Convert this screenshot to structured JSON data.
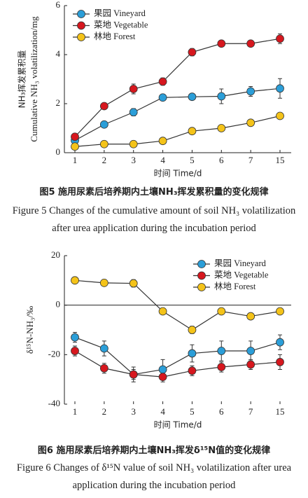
{
  "chart_data": [
    {
      "type": "line",
      "y_label_cn": "NH₃挥发累积量",
      "y_label": "Cumulative NH₃ volatilization/mg",
      "x_label": "时间 Time/d",
      "categories": [
        "1",
        "2",
        "3",
        "4",
        "5",
        "6",
        "7",
        "15"
      ],
      "ylim": [
        0,
        6
      ],
      "yticks": [
        0,
        2,
        4,
        6
      ],
      "legend": "upper left",
      "series": [
        {
          "name": "果园 Vineyard",
          "color": "#2b9ed8",
          "values": [
            0.5,
            1.15,
            1.65,
            2.25,
            2.28,
            2.3,
            2.5,
            2.62
          ],
          "errors": [
            0.05,
            0.1,
            0.15,
            0.08,
            0.1,
            0.3,
            0.2,
            0.4
          ]
        },
        {
          "name": "菜地 Vegetable",
          "color": "#d6171e",
          "values": [
            0.65,
            1.9,
            2.6,
            2.9,
            4.1,
            4.45,
            4.45,
            4.65
          ],
          "errors": [
            0.08,
            0.08,
            0.2,
            0.15,
            0.15,
            0.05,
            0.08,
            0.2
          ]
        },
        {
          "name": "林地 Forest",
          "color": "#f4c319",
          "values": [
            0.25,
            0.35,
            0.35,
            0.48,
            0.88,
            1.0,
            1.22,
            1.5
          ],
          "errors": [
            0.05,
            0.05,
            0.05,
            0.05,
            0.05,
            0.05,
            0.05,
            0.1
          ]
        }
      ],
      "caption_cn": "图5 施用尿素后培养期内土壤NH₃挥发累积量的变化规律",
      "caption_en": "Figure 5 Changes of the cumulative amount of soil NH₃ volatilization after urea application during the incubation period"
    },
    {
      "type": "line",
      "y_label": "δ¹⁵N-NH₃/‰",
      "x_label": "时间 Time/d",
      "categories": [
        "1",
        "2",
        "3",
        "4",
        "5",
        "6",
        "7",
        "15"
      ],
      "ylim": [
        -40,
        20
      ],
      "yticks": [
        -40,
        -20,
        0,
        20
      ],
      "legend": "upper right",
      "series": [
        {
          "name": "果园 Vineyard",
          "color": "#2b9ed8",
          "values": [
            -13,
            -17.5,
            -28,
            -26,
            -19.5,
            -18.5,
            -18.5,
            -15
          ],
          "errors": [
            2,
            3,
            2,
            4,
            3.5,
            4,
            4,
            3
          ]
        },
        {
          "name": "菜地 Vegetable",
          "color": "#d6171e",
          "values": [
            -18.5,
            -25.5,
            -28,
            -29,
            -26.5,
            -25,
            -24,
            -23
          ],
          "errors": [
            2,
            2,
            3,
            2,
            2,
            2,
            2,
            3
          ]
        },
        {
          "name": "林地 Forest",
          "color": "#f4c319",
          "values": [
            10,
            9,
            8.8,
            -2.5,
            -10,
            -2.5,
            -4.5,
            -2.5
          ],
          "errors": [
            1,
            1,
            1.5,
            1,
            1.5,
            1,
            1,
            1
          ]
        }
      ],
      "caption_cn": "图6 施用尿素后培养期内土壤NH₃挥发δ¹⁵N值的变化规律",
      "caption_en": "Figure 6 Changes of δ¹⁵N value of soil NH₃ volatilization after urea application during the incubation period"
    }
  ]
}
